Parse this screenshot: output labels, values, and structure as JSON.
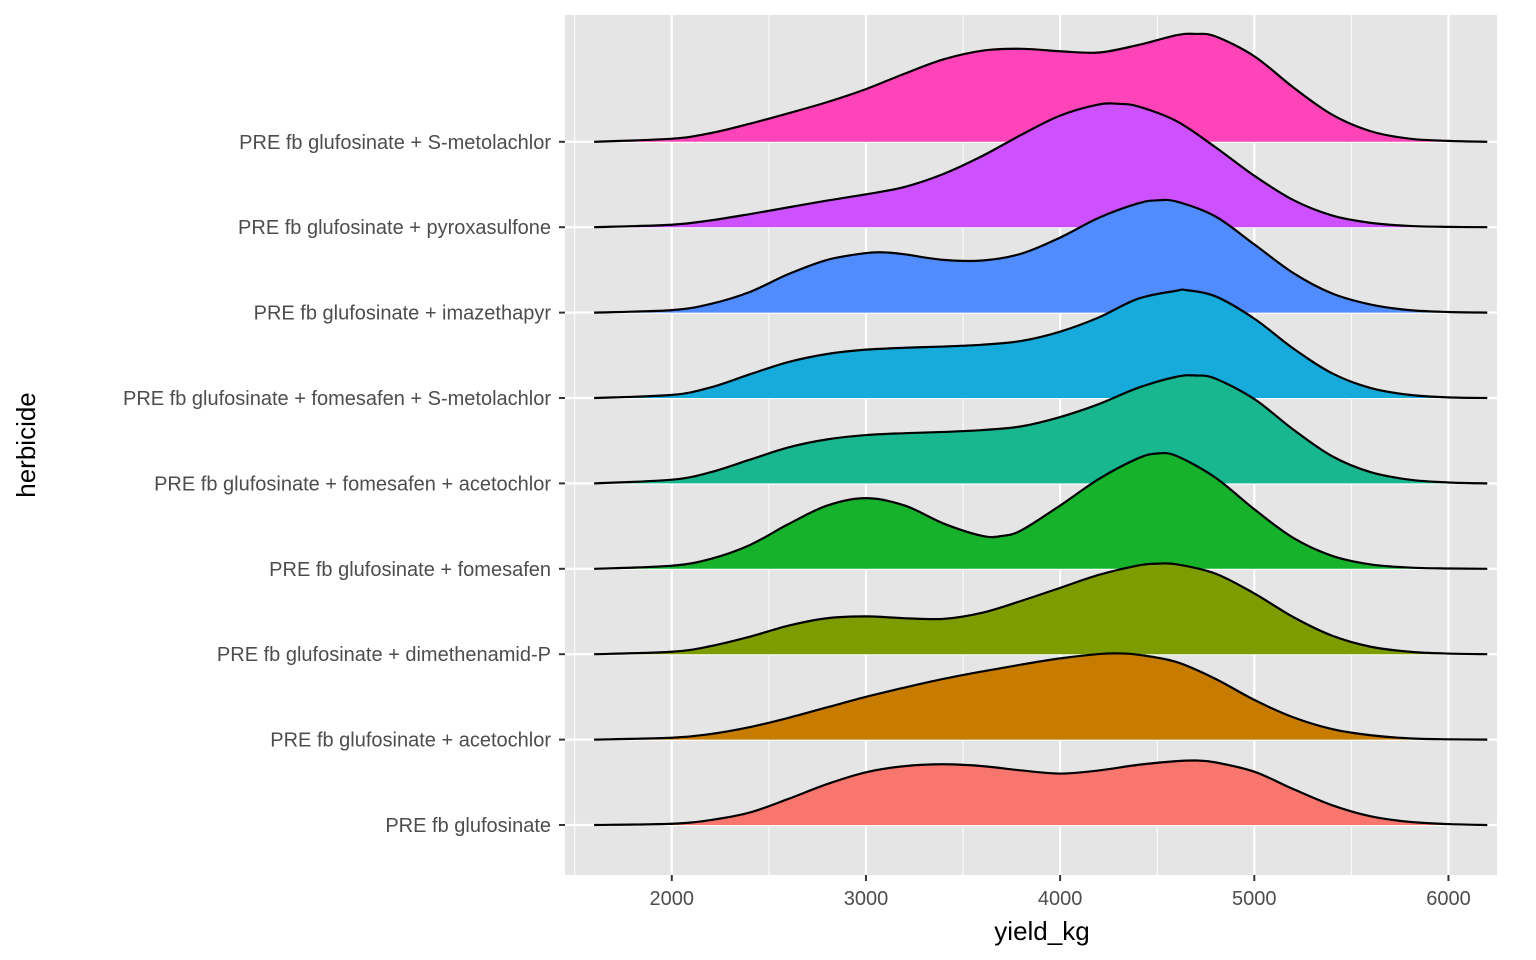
{
  "chart_data": {
    "type": "ridgeline",
    "xlabel": "yield_kg",
    "ylabel": "herbicide",
    "xlim": [
      1450,
      6250
    ],
    "x_ticks": [
      2000,
      3000,
      4000,
      5000,
      6000
    ],
    "density_range": [
      1600,
      6200
    ],
    "grid": true,
    "legend": "none",
    "panel_background": "#e5e5e5",
    "grid_color": "#ffffff",
    "outline_color": "#000000",
    "categories": [
      "PRE fb glufosinate",
      "PRE fb glufosinate + acetochlor",
      "PRE fb glufosinate + dimethenamid-P",
      "PRE fb glufosinate + fomesafen",
      "PRE fb glufosinate + fomesafen + acetochlor",
      "PRE fb glufosinate + fomesafen + S-metolachlor",
      "PRE fb glufosinate + imazethapyr",
      "PRE fb glufosinate + pyroxasulfone",
      "PRE fb glufosinate + S-metolachlor"
    ],
    "series": [
      {
        "name": "PRE fb glufosinate",
        "color": "#F8766D",
        "x": [
          1600,
          2000,
          2200,
          2400,
          2600,
          2800,
          3000,
          3200,
          3400,
          3600,
          3800,
          4000,
          4200,
          4400,
          4600,
          4700,
          4800,
          5000,
          5200,
          5400,
          5600,
          5800,
          6000,
          6200
        ],
        "density": [
          0,
          0.02,
          0.08,
          0.2,
          0.42,
          0.66,
          0.85,
          0.95,
          0.98,
          0.95,
          0.88,
          0.83,
          0.88,
          0.97,
          1.03,
          1.04,
          1.01,
          0.86,
          0.58,
          0.32,
          0.14,
          0.05,
          0.015,
          0
        ]
      },
      {
        "name": "PRE fb glufosinate + acetochlor",
        "color": "#C77C00",
        "x": [
          1600,
          2000,
          2200,
          2400,
          2600,
          2800,
          3000,
          3200,
          3400,
          3600,
          3800,
          4000,
          4200,
          4300,
          4400,
          4600,
          4800,
          5000,
          5200,
          5400,
          5600,
          5800,
          6000,
          6200
        ],
        "density": [
          0,
          0.03,
          0.09,
          0.2,
          0.35,
          0.52,
          0.69,
          0.84,
          0.98,
          1.1,
          1.21,
          1.31,
          1.38,
          1.39,
          1.37,
          1.25,
          0.98,
          0.64,
          0.36,
          0.17,
          0.07,
          0.02,
          0.005,
          0
        ]
      },
      {
        "name": "PRE fb glufosinate + dimethenamid-P",
        "color": "#7D9C00",
        "x": [
          1600,
          2000,
          2200,
          2400,
          2600,
          2800,
          3000,
          3200,
          3400,
          3600,
          3800,
          4000,
          4200,
          4400,
          4500,
          4600,
          4800,
          5000,
          5200,
          5400,
          5600,
          5800,
          6000,
          6200
        ],
        "density": [
          0,
          0.04,
          0.13,
          0.28,
          0.46,
          0.58,
          0.61,
          0.58,
          0.57,
          0.67,
          0.86,
          1.07,
          1.28,
          1.43,
          1.46,
          1.45,
          1.3,
          0.98,
          0.6,
          0.3,
          0.12,
          0.04,
          0.01,
          0
        ]
      },
      {
        "name": "PRE fb glufosinate + fomesafen",
        "color": "#16B22C",
        "x": [
          1600,
          2000,
          2200,
          2400,
          2600,
          2800,
          3000,
          3200,
          3400,
          3600,
          3700,
          3800,
          4000,
          4200,
          4400,
          4500,
          4600,
          4800,
          5000,
          5200,
          5400,
          5600,
          5800,
          6000,
          6200
        ],
        "density": [
          0,
          0.05,
          0.16,
          0.38,
          0.72,
          1.02,
          1.14,
          1.02,
          0.73,
          0.53,
          0.53,
          0.62,
          1.02,
          1.45,
          1.78,
          1.86,
          1.82,
          1.47,
          0.96,
          0.5,
          0.21,
          0.07,
          0.02,
          0.005,
          0
        ]
      },
      {
        "name": "PRE fb glufosinate + fomesafen + acetochlor",
        "color": "#18B78F",
        "x": [
          1600,
          2000,
          2200,
          2400,
          2600,
          2800,
          3000,
          3200,
          3400,
          3600,
          3800,
          4000,
          4200,
          4400,
          4600,
          4700,
          4800,
          5000,
          5200,
          5400,
          5600,
          5800,
          6000,
          6200
        ],
        "density": [
          0,
          0.06,
          0.18,
          0.38,
          0.58,
          0.71,
          0.78,
          0.81,
          0.83,
          0.86,
          0.92,
          1.07,
          1.28,
          1.54,
          1.72,
          1.74,
          1.69,
          1.36,
          0.87,
          0.44,
          0.18,
          0.06,
          0.015,
          0
        ]
      },
      {
        "name": "PRE fb glufosinate + fomesafen + S-metolachlor",
        "color": "#16ABDA",
        "x": [
          1600,
          2000,
          2200,
          2400,
          2600,
          2800,
          3000,
          3200,
          3400,
          3600,
          3800,
          4000,
          4200,
          4400,
          4600,
          4650,
          4800,
          5000,
          5200,
          5400,
          5600,
          5800,
          6000,
          6200
        ],
        "density": [
          0,
          0.05,
          0.17,
          0.38,
          0.58,
          0.71,
          0.78,
          0.81,
          0.83,
          0.86,
          0.92,
          1.07,
          1.3,
          1.6,
          1.73,
          1.74,
          1.64,
          1.28,
          0.8,
          0.4,
          0.16,
          0.05,
          0.01,
          0
        ]
      },
      {
        "name": "PRE fb glufosinate + imazethapyr",
        "color": "#518CFE",
        "x": [
          1600,
          2000,
          2200,
          2400,
          2600,
          2800,
          3000,
          3100,
          3200,
          3400,
          3600,
          3800,
          4000,
          4200,
          4400,
          4500,
          4600,
          4800,
          5000,
          5200,
          5400,
          5600,
          5800,
          6000,
          6200
        ],
        "density": [
          0,
          0.04,
          0.14,
          0.33,
          0.62,
          0.85,
          0.96,
          0.97,
          0.94,
          0.85,
          0.84,
          0.95,
          1.21,
          1.53,
          1.76,
          1.81,
          1.79,
          1.55,
          1.1,
          0.64,
          0.31,
          0.13,
          0.04,
          0.01,
          0
        ]
      },
      {
        "name": "PRE fb glufosinate + pyroxasulfone",
        "color": "#CE51FF",
        "x": [
          1600,
          2000,
          2200,
          2400,
          2600,
          2800,
          3000,
          3200,
          3400,
          3600,
          3800,
          4000,
          4200,
          4300,
          4400,
          4600,
          4800,
          5000,
          5200,
          5400,
          5600,
          5800,
          6000,
          6200
        ],
        "density": [
          0,
          0.04,
          0.11,
          0.21,
          0.32,
          0.43,
          0.53,
          0.65,
          0.86,
          1.15,
          1.49,
          1.8,
          1.98,
          1.99,
          1.95,
          1.71,
          1.29,
          0.83,
          0.44,
          0.19,
          0.07,
          0.02,
          0.005,
          0
        ]
      },
      {
        "name": "PRE fb glufosinate + S-metolachlor",
        "color": "#FF44B9",
        "x": [
          1600,
          2000,
          2200,
          2400,
          2600,
          2800,
          3000,
          3200,
          3400,
          3600,
          3800,
          4000,
          4200,
          4400,
          4600,
          4700,
          4800,
          5000,
          5200,
          5400,
          5600,
          5800,
          6000,
          6200
        ],
        "density": [
          0,
          0.05,
          0.14,
          0.29,
          0.46,
          0.64,
          0.85,
          1.1,
          1.33,
          1.47,
          1.5,
          1.46,
          1.44,
          1.56,
          1.72,
          1.74,
          1.7,
          1.38,
          0.88,
          0.44,
          0.17,
          0.05,
          0.015,
          0
        ]
      }
    ]
  }
}
